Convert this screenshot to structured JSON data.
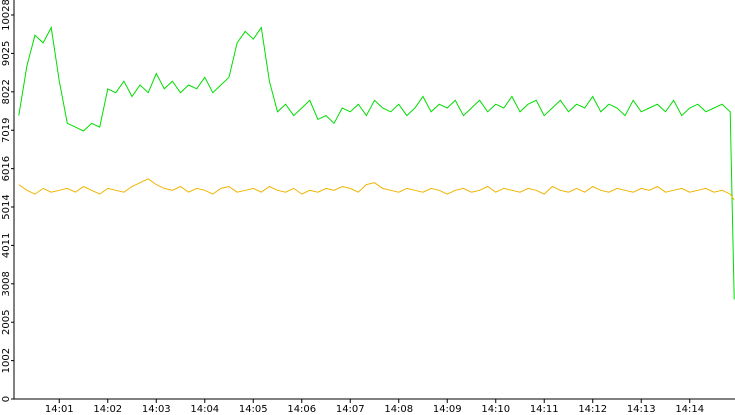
{
  "chart_data": {
    "type": "line",
    "x": [
      10,
      20,
      30,
      40,
      50,
      60,
      70,
      80,
      90,
      100,
      110,
      120,
      130,
      140,
      150,
      160,
      170,
      180,
      190,
      200,
      210,
      220,
      230,
      240,
      250,
      260,
      270,
      280,
      290,
      300,
      310,
      320,
      330,
      340,
      350,
      360,
      370,
      380,
      390,
      400,
      410,
      420,
      430,
      440,
      450,
      460,
      470,
      480,
      490,
      500,
      510,
      520,
      530,
      540,
      550,
      560,
      570,
      580,
      590,
      600,
      610,
      620,
      630,
      640,
      650,
      660,
      670,
      680,
      690,
      700,
      710,
      720,
      730,
      740,
      750,
      760,
      770,
      780,
      790,
      800,
      810,
      820,
      830,
      840,
      850,
      860,
      870,
      880,
      890,
      895
    ],
    "series": [
      {
        "name": "green",
        "color": "#00dd00",
        "values": [
          7400,
          8700,
          9500,
          9300,
          9700,
          8300,
          7200,
          7100,
          7000,
          7200,
          7100,
          8100,
          8000,
          8300,
          7900,
          8200,
          8000,
          8500,
          8100,
          8300,
          8000,
          8200,
          8100,
          8400,
          8000,
          8200,
          8400,
          9300,
          9600,
          9400,
          9700,
          8300,
          7500,
          7700,
          7400,
          7600,
          7800,
          7300,
          7400,
          7200,
          7600,
          7500,
          7700,
          7400,
          7800,
          7600,
          7500,
          7700,
          7400,
          7600,
          7900,
          7500,
          7700,
          7600,
          7800,
          7400,
          7600,
          7800,
          7500,
          7700,
          7600,
          7900,
          7500,
          7700,
          7800,
          7400,
          7600,
          7800,
          7500,
          7700,
          7600,
          7900,
          7500,
          7700,
          7600,
          7400,
          7800,
          7500,
          7600,
          7700,
          7500,
          7800,
          7400,
          7600,
          7700,
          7500,
          7600,
          7700,
          7500,
          2600
        ]
      },
      {
        "name": "orange",
        "color": "#f0b400",
        "values": [
          5600,
          5450,
          5350,
          5500,
          5400,
          5450,
          5500,
          5400,
          5550,
          5450,
          5350,
          5500,
          5450,
          5400,
          5550,
          5650,
          5750,
          5600,
          5500,
          5450,
          5550,
          5400,
          5500,
          5450,
          5350,
          5500,
          5550,
          5400,
          5450,
          5500,
          5400,
          5550,
          5450,
          5400,
          5500,
          5350,
          5450,
          5400,
          5500,
          5450,
          5550,
          5500,
          5400,
          5600,
          5650,
          5500,
          5450,
          5400,
          5500,
          5450,
          5400,
          5500,
          5450,
          5350,
          5450,
          5500,
          5400,
          5450,
          5550,
          5400,
          5500,
          5450,
          5400,
          5500,
          5450,
          5350,
          5550,
          5450,
          5400,
          5500,
          5400,
          5550,
          5450,
          5400,
          5500,
          5450,
          5400,
          5500,
          5450,
          5550,
          5400,
          5450,
          5500,
          5400,
          5450,
          5500,
          5400,
          5450,
          5350,
          5200
        ]
      }
    ],
    "xlim": [
      4,
      896
    ],
    "xticks": [
      {
        "value": 60,
        "label": "14:01"
      },
      {
        "value": 120,
        "label": "14:02"
      },
      {
        "value": 180,
        "label": "14:03"
      },
      {
        "value": 240,
        "label": "14:04"
      },
      {
        "value": 300,
        "label": "14:05"
      },
      {
        "value": 360,
        "label": "14:06"
      },
      {
        "value": 420,
        "label": "14:07"
      },
      {
        "value": 480,
        "label": "14:08"
      },
      {
        "value": 540,
        "label": "14:09"
      },
      {
        "value": 600,
        "label": "14:10"
      },
      {
        "value": 660,
        "label": "14:11"
      },
      {
        "value": 720,
        "label": "14:12"
      },
      {
        "value": 780,
        "label": "14:13"
      },
      {
        "value": 840,
        "label": "14:14"
      }
    ],
    "ylim": [
      0,
      10420
    ],
    "yticks": [
      0,
      1002,
      2005,
      3008,
      4011,
      5014,
      6016,
      7019,
      8022,
      9025,
      10028
    ]
  }
}
